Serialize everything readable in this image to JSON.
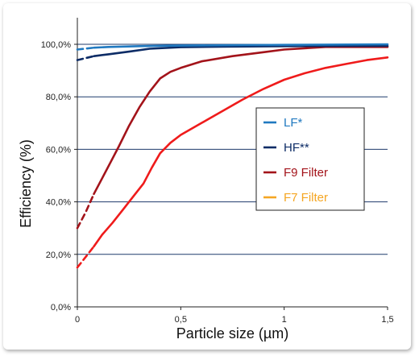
{
  "chart_data": {
    "type": "line",
    "xlabel": "Particle size (µm)",
    "ylabel": "Efficiency (%)",
    "xlim": [
      0,
      1.5
    ],
    "ylim": [
      0,
      100
    ],
    "x_ticks": [
      {
        "value": 0,
        "label": "0"
      },
      {
        "value": 0.5,
        "label": "0,5"
      },
      {
        "value": 1,
        "label": "1"
      },
      {
        "value": 1.5,
        "label": "1,5"
      }
    ],
    "y_ticks": [
      {
        "value": 0,
        "label": "0,0%"
      },
      {
        "value": 20,
        "label": "20,0%"
      },
      {
        "value": 40,
        "label": "40,0%"
      },
      {
        "value": 60,
        "label": "60,0%"
      },
      {
        "value": 80,
        "label": "80,0%"
      },
      {
        "value": 100,
        "label": "100,0%"
      }
    ],
    "grid": "horizontal",
    "legend_position": "right",
    "series": [
      {
        "name": "LF*",
        "color": "#2079c0",
        "points": [
          [
            0,
            98.0
          ],
          [
            0.08,
            98.7
          ],
          [
            0.15,
            99.0
          ],
          [
            0.3,
            99.3
          ],
          [
            0.5,
            99.5
          ],
          [
            0.8,
            99.7
          ],
          [
            1.0,
            99.8
          ],
          [
            1.5,
            100.0
          ]
        ],
        "dashed_until": 0.08
      },
      {
        "name": "HF**",
        "color": "#0d2c66",
        "points": [
          [
            0,
            94.0
          ],
          [
            0.08,
            95.5
          ],
          [
            0.15,
            96.2
          ],
          [
            0.25,
            97.2
          ],
          [
            0.35,
            98.3
          ],
          [
            0.5,
            98.9
          ],
          [
            0.7,
            99.1
          ],
          [
            1.0,
            99.3
          ],
          [
            1.5,
            99.4
          ]
        ],
        "dashed_until": 0.08
      },
      {
        "name": "F9 Filter",
        "color": "#a3131a",
        "points": [
          [
            0,
            30.0
          ],
          [
            0.04,
            36.0
          ],
          [
            0.08,
            43.0
          ],
          [
            0.12,
            49.0
          ],
          [
            0.16,
            55.0
          ],
          [
            0.2,
            61.0
          ],
          [
            0.25,
            69.0
          ],
          [
            0.3,
            76.0
          ],
          [
            0.35,
            82.0
          ],
          [
            0.4,
            87.0
          ],
          [
            0.45,
            89.5
          ],
          [
            0.5,
            91.0
          ],
          [
            0.6,
            93.5
          ],
          [
            0.75,
            95.5
          ],
          [
            0.9,
            97.0
          ],
          [
            1.0,
            98.0
          ],
          [
            1.2,
            99.0
          ],
          [
            1.5,
            99.0
          ]
        ],
        "dashed_until": 0.08
      },
      {
        "name": "F7 Filter",
        "color": "#ef1b1b",
        "legend_color": "#f5a623",
        "points": [
          [
            0,
            15.0
          ],
          [
            0.04,
            19.0
          ],
          [
            0.08,
            23.0
          ],
          [
            0.12,
            27.5
          ],
          [
            0.17,
            32.0
          ],
          [
            0.22,
            37.0
          ],
          [
            0.27,
            42.0
          ],
          [
            0.32,
            47.0
          ],
          [
            0.36,
            53.0
          ],
          [
            0.4,
            58.5
          ],
          [
            0.45,
            62.5
          ],
          [
            0.5,
            65.5
          ],
          [
            0.6,
            70.0
          ],
          [
            0.7,
            74.5
          ],
          [
            0.8,
            79.0
          ],
          [
            0.9,
            83.0
          ],
          [
            1.0,
            86.5
          ],
          [
            1.1,
            89.0
          ],
          [
            1.2,
            91.0
          ],
          [
            1.3,
            92.5
          ],
          [
            1.4,
            94.0
          ],
          [
            1.5,
            95.0
          ]
        ],
        "dashed_until": 0.08
      }
    ]
  }
}
